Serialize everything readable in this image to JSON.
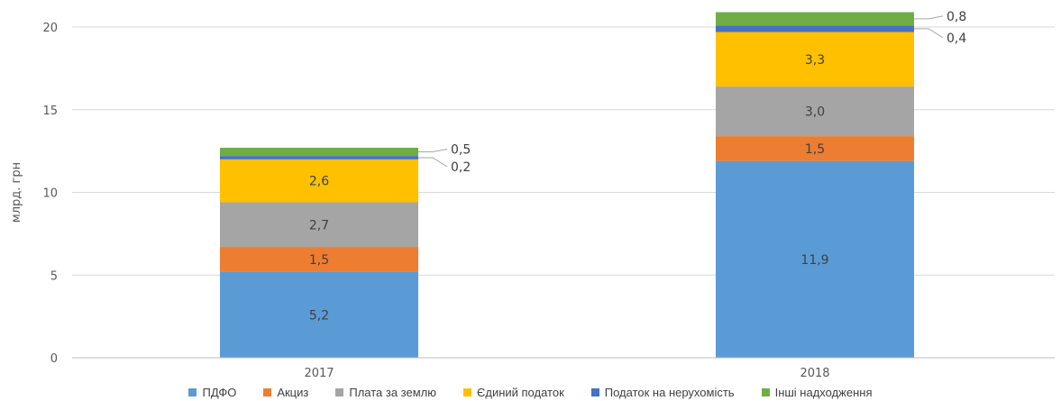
{
  "chart_data": {
    "type": "bar",
    "stacked": true,
    "categories": [
      "2017",
      "2018"
    ],
    "ylabel": "млрд. грн",
    "ylim": [
      0,
      20
    ],
    "yticks": [
      0,
      5,
      10,
      15,
      20
    ],
    "grid": true,
    "legend_position": "bottom",
    "series": [
      {
        "name": "ПДФО",
        "color": "#5b9bd5",
        "values": [
          5.2,
          11.9
        ],
        "labels": [
          "5,2",
          "11,9"
        ]
      },
      {
        "name": "Акциз",
        "color": "#ed7d31",
        "values": [
          1.5,
          1.5
        ],
        "labels": [
          "1,5",
          "1,5"
        ]
      },
      {
        "name": "Плата за землю",
        "color": "#a5a5a5",
        "values": [
          2.7,
          3.0
        ],
        "labels": [
          "2,7",
          "3,0"
        ]
      },
      {
        "name": "Єдиний податок",
        "color": "#ffc000",
        "values": [
          2.6,
          3.3
        ],
        "labels": [
          "2,6",
          "3,3"
        ]
      },
      {
        "name": "Податок на нерухомість",
        "color": "#4472c4",
        "values": [
          0.2,
          0.4
        ],
        "labels": [
          "0,2",
          "0,4"
        ]
      },
      {
        "name": "Інші надходження",
        "color": "#70ad47",
        "values": [
          0.5,
          0.8
        ],
        "labels": [
          "0,5",
          "0,8"
        ]
      }
    ]
  }
}
